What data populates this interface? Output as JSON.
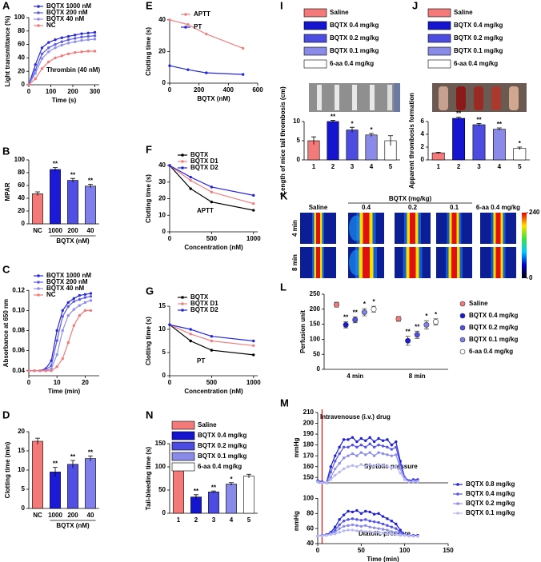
{
  "chart_data": [
    {
      "label": "A",
      "type": "line",
      "xlabel": "Time (s)",
      "ylabel": "Light transmittance (%)",
      "xlim": [
        0,
        320
      ],
      "xticks": [
        0,
        100,
        200,
        300
      ],
      "ylim": [
        0,
        100
      ],
      "yticks": [
        0,
        20,
        40,
        60,
        80,
        100
      ],
      "x": [
        0,
        30,
        60,
        90,
        120,
        150,
        180,
        210,
        240,
        270,
        300
      ],
      "series": [
        {
          "name": "BQTX 1000 nM",
          "color": "#2a2ad6",
          "values": [
            0,
            30,
            55,
            63,
            67,
            70,
            72,
            74,
            76,
            77,
            78
          ]
        },
        {
          "name": "BQTX 200 nM",
          "color": "#5a5ae4",
          "values": [
            0,
            22,
            46,
            55,
            60,
            64,
            67,
            69,
            71,
            72,
            73
          ]
        },
        {
          "name": "BQTX 40 nM",
          "color": "#8e8eee",
          "values": [
            0,
            17,
            39,
            49,
            55,
            59,
            62,
            64,
            66,
            67,
            68
          ]
        },
        {
          "name": "NC",
          "color": "#f47a7a",
          "values": [
            0,
            9,
            24,
            34,
            40,
            43,
            46,
            48,
            49,
            50,
            50
          ]
        }
      ],
      "annotations": [
        "Thrombin (40 nM)"
      ]
    },
    {
      "label": "B",
      "type": "bar",
      "ylabel": "MPAR",
      "xlabel": "BQTX (nM)",
      "categories": [
        "NC",
        "1000",
        "200",
        "40"
      ],
      "values": [
        47,
        85,
        68,
        59
      ],
      "errors": [
        3,
        3,
        3,
        3
      ],
      "colors": [
        "#f47a7a",
        "#1a1ad8",
        "#5050e4",
        "#8080ec"
      ],
      "stars": [
        null,
        "**",
        "**",
        "**"
      ],
      "ylim": [
        0,
        100
      ],
      "yticks": [
        0,
        20,
        40,
        60,
        80,
        100
      ]
    },
    {
      "label": "C",
      "type": "line",
      "xlabel": "Time (min)",
      "ylabel": "Absorbance at 650 nm",
      "xlim": [
        0,
        25
      ],
      "xticks": [
        0,
        10,
        20
      ],
      "ylim": [
        0.035,
        0.125
      ],
      "yticks": [
        0.04,
        0.06,
        0.08,
        {
          "value": 0.1,
          "label": "0.10"
        },
        0.12
      ],
      "x": [
        0,
        2,
        4,
        6,
        8,
        10,
        12,
        14,
        16,
        18,
        20,
        22
      ],
      "series": [
        {
          "name": "BQTX 1000 nM",
          "color": "#2a2ad6",
          "values": [
            0.04,
            0.04,
            0.04,
            0.042,
            0.05,
            0.08,
            0.1,
            0.108,
            0.112,
            0.115,
            0.116,
            0.117
          ]
        },
        {
          "name": "BQTX 200 nM",
          "color": "#5a5ae4",
          "values": [
            0.04,
            0.04,
            0.04,
            0.041,
            0.045,
            0.07,
            0.094,
            0.104,
            0.109,
            0.111,
            0.113,
            0.114
          ]
        },
        {
          "name": "BQTX 40 nM",
          "color": "#8e8eee",
          "values": [
            0.04,
            0.04,
            0.04,
            0.04,
            0.042,
            0.056,
            0.08,
            0.095,
            0.101,
            0.105,
            0.108,
            0.11
          ]
        },
        {
          "name": "NC",
          "color": "#f47a7a",
          "values": [
            0.04,
            0.04,
            0.04,
            0.04,
            0.04,
            0.044,
            0.052,
            0.068,
            0.085,
            0.095,
            0.1,
            0.1
          ]
        }
      ]
    },
    {
      "label": "D",
      "type": "bar",
      "ylabel": "Clotting time (min)",
      "xlabel": "BQTX (nM)",
      "categories": [
        "NC",
        "1000",
        "200",
        "40"
      ],
      "values": [
        17.5,
        9.5,
        11.5,
        13
      ],
      "errors": [
        0.8,
        1.2,
        1,
        0.7
      ],
      "colors": [
        "#f47a7a",
        "#1a1ad8",
        "#5050e4",
        "#8080ec"
      ],
      "stars": [
        null,
        "**",
        "**",
        "**"
      ],
      "ylim": [
        0,
        20
      ],
      "yticks": [
        0,
        5,
        10,
        15,
        20
      ]
    },
    {
      "label": "E",
      "type": "line",
      "xlabel": "BQTX (nM)",
      "ylabel": "Clotting time (s)",
      "xlim": [
        0,
        600
      ],
      "xticks": [
        0,
        200,
        400,
        600
      ],
      "ylim": [
        0,
        50
      ],
      "yticks": [
        0,
        20,
        40
      ],
      "x": [
        0,
        125,
        250,
        500
      ],
      "series": [
        {
          "name": "APTT",
          "color": "#f08080",
          "values": [
            40,
            37,
            31,
            22
          ]
        },
        {
          "name": "PT",
          "color": "#2424e0",
          "values": [
            11,
            8.5,
            6.5,
            5.5
          ]
        }
      ]
    },
    {
      "label": "F",
      "type": "line",
      "xlabel": "Concentration (nM)",
      "ylabel": "Clotting time (s)",
      "xlim": [
        0,
        1050
      ],
      "xticks": [
        0,
        500,
        1000
      ],
      "ylim": [
        0,
        40
      ],
      "yticks": [
        0,
        10,
        20,
        30,
        40
      ],
      "x": [
        0,
        250,
        500,
        1000
      ],
      "series": [
        {
          "name": "BQTX",
          "color": "#000000",
          "values": [
            40,
            26,
            18,
            13
          ]
        },
        {
          "name": "BQTX D1",
          "color": "#f08080",
          "values": [
            40,
            31,
            24,
            17
          ]
        },
        {
          "name": "BQTX D2",
          "color": "#2424e0",
          "values": [
            40,
            33,
            27,
            22
          ]
        }
      ],
      "annotations": [
        "APTT"
      ]
    },
    {
      "label": "G",
      "type": "line",
      "xlabel": "Concentration (nM)",
      "ylabel": "Clotting time (s)",
      "xlim": [
        0,
        1050
      ],
      "xticks": [
        0,
        500,
        1000
      ],
      "ylim": [
        0,
        15
      ],
      "yticks": [
        0,
        5,
        10,
        15
      ],
      "x": [
        0,
        250,
        500,
        1000
      ],
      "series": [
        {
          "name": "BQTX",
          "color": "#000000",
          "values": [
            11,
            7.5,
            5.5,
            4.5
          ]
        },
        {
          "name": "BQTX D1",
          "color": "#f08080",
          "values": [
            11,
            9,
            7.5,
            6.5
          ]
        },
        {
          "name": "BQTX D2",
          "color": "#2424e0",
          "values": [
            11,
            10,
            8.5,
            7.5
          ]
        }
      ],
      "annotations": [
        "PT"
      ]
    },
    {
      "label": "N",
      "type": "bar",
      "ylabel": "Tail-bleeding time (s)",
      "categories": [
        "1",
        "2",
        "3",
        "4",
        "5"
      ],
      "values": [
        93,
        35,
        46,
        63,
        80
      ],
      "errors": [
        3,
        5,
        2,
        3,
        4
      ],
      "colors": [
        "#f47a7a",
        "#1515d0",
        "#4c4ce0",
        "#8a8ae8",
        "#ffffff"
      ],
      "stars": [
        null,
        "**",
        "**",
        "*",
        null
      ],
      "ylim": [
        0,
        150
      ],
      "yticks": [
        0,
        50,
        100,
        150
      ],
      "legend": [
        {
          "name": "Saline",
          "color": "#f47a7a"
        },
        {
          "name": "BQTX 0.4 mg/kg",
          "color": "#1515d0"
        },
        {
          "name": "BQTX 0.2 mg/kg",
          "color": "#4c4ce0"
        },
        {
          "name": "BQTX 0.1 mg/kg",
          "color": "#8a8ae8"
        },
        {
          "name": "6-aa 0.4 mg/kg",
          "color": "#ffffff"
        }
      ]
    },
    {
      "label": "I",
      "type": "bar",
      "ylabel": "Length of mice tail thrombosis (cm)",
      "categories": [
        "1",
        "2",
        "3",
        "4",
        "5"
      ],
      "values": [
        5,
        10,
        7.8,
        6.5,
        5
      ],
      "errors": [
        1,
        0.3,
        0.7,
        0.4,
        1.3
      ],
      "colors": [
        "#f47a7a",
        "#1515d0",
        "#4c4ce0",
        "#8a8ae8",
        "#ffffff"
      ],
      "stars": [
        null,
        "**",
        "*",
        "*",
        null
      ],
      "ylim": [
        0,
        15
      ],
      "yticks": [
        0,
        5,
        10
      ],
      "legend": [
        {
          "name": "Saline",
          "color": "#f47a7a"
        },
        {
          "name": "BQTX 0.4 mg/kg",
          "color": "#1515d0"
        },
        {
          "name": "BQTX 0.2 mg/kg",
          "color": "#4c4ce0"
        },
        {
          "name": "BQTX 0.1 mg/kg",
          "color": "#8a8ae8"
        },
        {
          "name": "6-aa 0.4 mg/kg",
          "color": "#ffffff"
        }
      ]
    },
    {
      "label": "J",
      "type": "bar",
      "ylabel": "Apparent thrombosis formation",
      "categories": [
        "1",
        "2",
        "3",
        "4",
        "5"
      ],
      "values": [
        1.1,
        6.5,
        5.5,
        4.8,
        1.8
      ],
      "errors": [
        0.1,
        0.2,
        0.2,
        0.2,
        0.2
      ],
      "colors": [
        "#f47a7a",
        "#1515d0",
        "#4c4ce0",
        "#8a8ae8",
        "#ffffff"
      ],
      "stars": [
        null,
        "**",
        "**",
        "**",
        "*"
      ],
      "ylim": [
        0,
        9
      ],
      "yticks": [
        0,
        2,
        4,
        6
      ],
      "legend": [
        {
          "name": "Saline",
          "color": "#f47a7a"
        },
        {
          "name": "BQTX 0.4 mg/kg",
          "color": "#1515d0"
        },
        {
          "name": "BQTX 0.2 mg/kg",
          "color": "#4c4ce0"
        },
        {
          "name": "BQTX 0.1 mg/kg",
          "color": "#8a8ae8"
        },
        {
          "name": "6-aa 0.4 mg/kg",
          "color": "#ffffff"
        }
      ]
    },
    {
      "label": "K",
      "type": "heatmap",
      "group_label": "BQTX (mg/kg)",
      "column_labels": [
        "Saline",
        "0.4",
        "0.2",
        "0.1",
        "6-aa 0.4 mg/kg"
      ],
      "row_labels": [
        "4 min",
        "8 min"
      ],
      "colorbar_lim": [
        0,
        240
      ],
      "colorbar_ticks": [
        0,
        240
      ]
    },
    {
      "label": "L",
      "type": "dotplot",
      "ylabel": "Perfusion unit",
      "categories": [
        "4 min",
        "8 min"
      ],
      "ylim": [
        0,
        250
      ],
      "yticks": [
        0,
        50,
        100,
        150,
        200,
        250
      ],
      "series": [
        {
          "name": "Saline",
          "color": "#f47a7a",
          "values": [
            215,
            168
          ],
          "errors": [
            8,
            8
          ],
          "stars": [
            null,
            null
          ]
        },
        {
          "name": "BQTX 0.4 mg/kg",
          "color": "#1a1ad8",
          "values": [
            148,
            95
          ],
          "errors": [
            10,
            15
          ],
          "stars": [
            "**",
            "**"
          ]
        },
        {
          "name": "BQTX 0.2 mg/kg",
          "color": "#5050e4",
          "values": [
            165,
            115
          ],
          "errors": [
            10,
            12
          ],
          "stars": [
            "**",
            "**"
          ]
        },
        {
          "name": "BQTX 0.1 mg/kg",
          "color": "#8080ec",
          "values": [
            190,
            148
          ],
          "errors": [
            12,
            14
          ],
          "stars": [
            "*",
            "*"
          ]
        },
        {
          "name": "6-aa 0.4 mg/kg",
          "color": "#ffffff",
          "values": [
            200,
            158
          ],
          "errors": [
            10,
            10
          ],
          "stars": [
            "*",
            "*"
          ]
        }
      ]
    },
    {
      "label": "M",
      "type": "line",
      "ylabel": "mmHg",
      "xlim": [
        0,
        150
      ],
      "ylim": [
        145,
        210
      ],
      "yticks": [
        150,
        160,
        170,
        180,
        190,
        200,
        210
      ],
      "event_x": 5,
      "x": [
        0,
        5,
        10,
        15,
        20,
        25,
        30,
        35,
        40,
        45,
        50,
        55,
        60,
        65,
        70,
        75,
        80,
        85,
        90,
        95,
        100,
        105,
        110,
        115
      ],
      "annotations": [
        "Intravenouse (i.v.) drug",
        "Systolic pressure"
      ],
      "series": [
        {
          "color": "#2020d8",
          "values": [
            147,
            146,
            145,
            160,
            170,
            178,
            185,
            185,
            187,
            183,
            186,
            184,
            187,
            183,
            186,
            184,
            185,
            180,
            183,
            165,
            150,
            147,
            148,
            148
          ]
        },
        {
          "color": "#5656e6",
          "values": [
            146,
            145,
            145,
            155,
            165,
            172,
            178,
            178,
            180,
            178,
            180,
            178,
            181,
            178,
            180,
            179,
            178,
            176,
            178,
            162,
            150,
            146,
            147,
            147
          ]
        },
        {
          "color": "#8c8cee",
          "values": [
            146,
            145,
            145,
            150,
            158,
            163,
            168,
            170,
            172,
            170,
            173,
            171,
            173,
            170,
            173,
            172,
            171,
            170,
            171,
            158,
            149,
            146,
            147,
            147
          ]
        },
        {
          "color": "#b8b8f4",
          "values": [
            146,
            145,
            145,
            148,
            152,
            155,
            158,
            160,
            161,
            160,
            162,
            160,
            162,
            160,
            162,
            161,
            160,
            159,
            160,
            154,
            148,
            146,
            146,
            146
          ]
        }
      ]
    },
    {
      "type": "line",
      "ylabel": "mmHg",
      "xlabel": "Time (min)",
      "xlim": [
        0,
        150
      ],
      "xticks": [
        0,
        50,
        100,
        150
      ],
      "ylim": [
        40,
        110
      ],
      "yticks": [
        40,
        60,
        80,
        100
      ],
      "x": [
        0,
        5,
        10,
        15,
        20,
        25,
        30,
        35,
        40,
        45,
        50,
        55,
        60,
        65,
        70,
        75,
        80,
        85,
        90,
        95,
        100,
        105,
        110,
        115
      ],
      "annotations": [
        "Diatolic pressure"
      ],
      "series": [
        {
          "name": "BQTX 0.8 mg/kg",
          "color": "#2020d8",
          "values": [
            50,
            51,
            52,
            55,
            62,
            72,
            78,
            83,
            82,
            84,
            80,
            83,
            82,
            79,
            80,
            76,
            73,
            70,
            66,
            58,
            52,
            51,
            51,
            51
          ]
        },
        {
          "name": "BQTX 0.4 mg/kg",
          "color": "#5656e6",
          "values": [
            50,
            51,
            52,
            54,
            58,
            65,
            70,
            72,
            73,
            72,
            71,
            72,
            70,
            69,
            68,
            66,
            64,
            62,
            60,
            55,
            52,
            51,
            51,
            50
          ]
        },
        {
          "name": "BQTX 0.2 mg/kg",
          "color": "#8c8cee",
          "values": [
            50,
            51,
            51,
            53,
            55,
            60,
            63,
            64,
            65,
            64,
            63,
            64,
            62,
            61,
            60,
            59,
            58,
            56,
            55,
            53,
            51,
            51,
            50,
            50
          ]
        },
        {
          "name": "BQTX 0.1 mg/kg",
          "color": "#b8b8f4",
          "values": [
            50,
            50,
            51,
            52,
            53,
            55,
            57,
            58,
            58,
            57,
            57,
            56,
            56,
            55,
            55,
            54,
            53,
            53,
            52,
            51,
            51,
            50,
            50,
            50
          ]
        }
      ]
    }
  ]
}
